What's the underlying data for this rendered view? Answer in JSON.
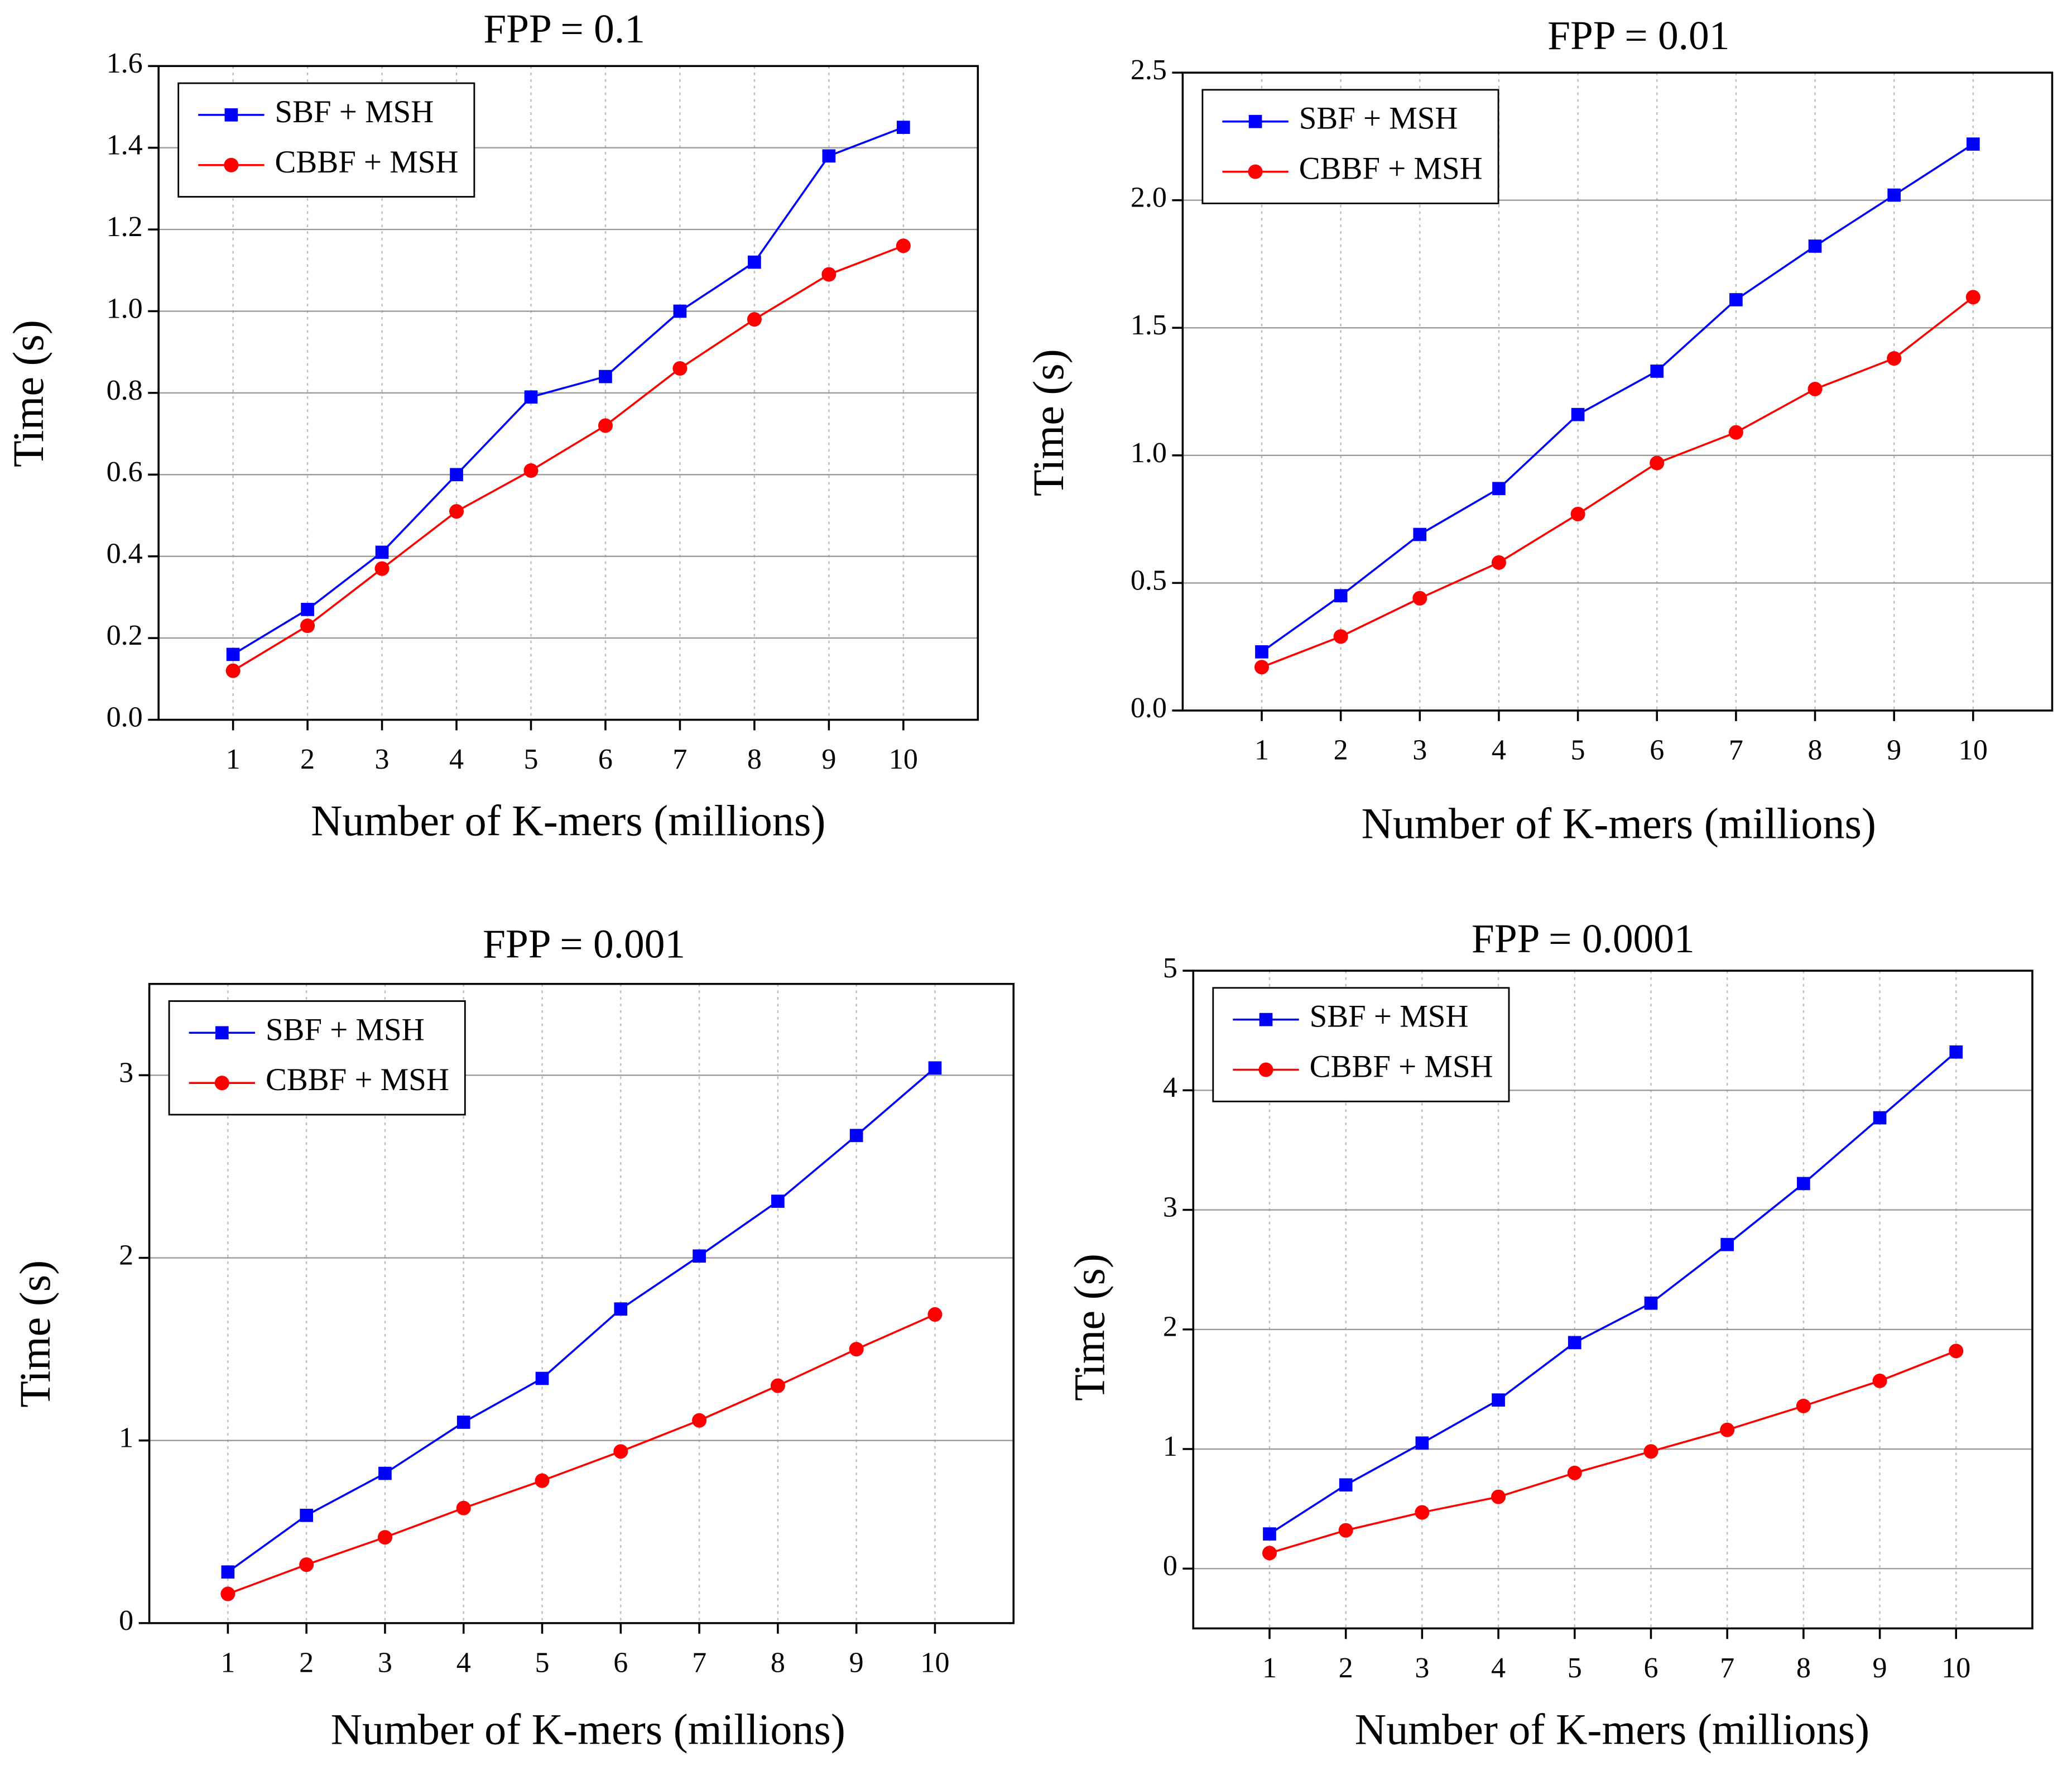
{
  "chart_data": [
    {
      "type": "line",
      "title": "FPP = 0.1",
      "x_label": "Number of K-mers (millions)",
      "y_label": "Time (s)",
      "x": [
        1,
        2,
        3,
        4,
        5,
        6,
        7,
        8,
        9,
        10
      ],
      "xlim": [
        0,
        11
      ],
      "xticks": [
        1,
        2,
        3,
        4,
        5,
        6,
        7,
        8,
        9,
        10
      ],
      "ylim": [
        0,
        1.6
      ],
      "yticks": [
        {
          "value": 0,
          "label": "0.0"
        },
        0.2,
        0.4,
        0.6,
        0.8,
        {
          "value": 1,
          "label": "1.0"
        },
        1.2,
        1.4,
        1.6
      ],
      "grid": true,
      "legend": "upper left",
      "series": [
        {
          "name": "SBF + MSH",
          "color": "#0000ff",
          "marker": "square",
          "values": [
            0.16,
            0.27,
            0.41,
            0.6,
            0.79,
            0.84,
            1.0,
            1.12,
            1.38,
            1.45
          ]
        },
        {
          "name": "CBBF + MSH",
          "color": "#ff0000",
          "marker": "circle",
          "values": [
            0.12,
            0.23,
            0.37,
            0.51,
            0.61,
            0.72,
            0.86,
            0.98,
            1.09,
            1.16
          ]
        }
      ]
    },
    {
      "type": "line",
      "title": "FPP = 0.01",
      "x_label": "Number of K-mers (millions)",
      "y_label": "Time (s)",
      "x": [
        1,
        2,
        3,
        4,
        5,
        6,
        7,
        8,
        9,
        10
      ],
      "xlim": [
        0,
        11
      ],
      "xticks": [
        1,
        2,
        3,
        4,
        5,
        6,
        7,
        8,
        9,
        10
      ],
      "ylim": [
        0,
        2.5
      ],
      "yticks": [
        {
          "value": 0,
          "label": "0.0"
        },
        0.5,
        {
          "value": 1,
          "label": "1.0"
        },
        1.5,
        {
          "value": 2,
          "label": "2.0"
        },
        2.5
      ],
      "grid": true,
      "legend": "upper left",
      "series": [
        {
          "name": "SBF + MSH",
          "color": "#0000ff",
          "marker": "square",
          "values": [
            0.23,
            0.45,
            0.69,
            0.87,
            1.16,
            1.33,
            1.61,
            1.82,
            2.02,
            2.22
          ]
        },
        {
          "name": "CBBF + MSH",
          "color": "#ff0000",
          "marker": "circle",
          "values": [
            0.17,
            0.29,
            0.44,
            0.58,
            0.77,
            0.97,
            1.09,
            1.26,
            1.38,
            1.62
          ]
        }
      ]
    },
    {
      "type": "line",
      "title": "FPP = 0.001",
      "x_label": "Number of K-mers (millions)",
      "y_label": "Time (s)",
      "x": [
        1,
        2,
        3,
        4,
        5,
        6,
        7,
        8,
        9,
        10
      ],
      "xlim": [
        0,
        11
      ],
      "xticks": [
        1,
        2,
        3,
        4,
        5,
        6,
        7,
        8,
        9,
        10
      ],
      "ylim": [
        0,
        3.5
      ],
      "yticks": [
        0,
        1,
        2,
        3
      ],
      "grid": true,
      "legend": "upper left",
      "series": [
        {
          "name": "SBF + MSH",
          "color": "#0000ff",
          "marker": "square",
          "values": [
            0.28,
            0.59,
            0.82,
            1.1,
            1.34,
            1.72,
            2.01,
            2.31,
            2.67,
            3.04
          ]
        },
        {
          "name": "CBBF + MSH",
          "color": "#ff0000",
          "marker": "circle",
          "values": [
            0.16,
            0.32,
            0.47,
            0.63,
            0.78,
            0.94,
            1.11,
            1.3,
            1.5,
            1.69
          ]
        }
      ]
    },
    {
      "type": "line",
      "title": "FPP = 0.0001",
      "x_label": "Number of K-mers (millions)",
      "y_label": "Time (s)",
      "x": [
        1,
        2,
        3,
        4,
        5,
        6,
        7,
        8,
        9,
        10
      ],
      "xlim": [
        0,
        11
      ],
      "xticks": [
        1,
        2,
        3,
        4,
        5,
        6,
        7,
        8,
        9,
        10
      ],
      "ylim": [
        -0.5,
        5
      ],
      "yticks": [
        0,
        1,
        2,
        3,
        4,
        5
      ],
      "grid": true,
      "legend": "upper left",
      "series": [
        {
          "name": "SBF + MSH",
          "color": "#0000ff",
          "marker": "square",
          "values": [
            0.29,
            0.7,
            1.05,
            1.41,
            1.89,
            2.22,
            2.71,
            3.22,
            3.77,
            4.32
          ]
        },
        {
          "name": "CBBF + MSH",
          "color": "#ff0000",
          "marker": "circle",
          "values": [
            0.13,
            0.32,
            0.47,
            0.6,
            0.8,
            0.98,
            1.16,
            1.36,
            1.57,
            1.82
          ]
        }
      ]
    }
  ]
}
